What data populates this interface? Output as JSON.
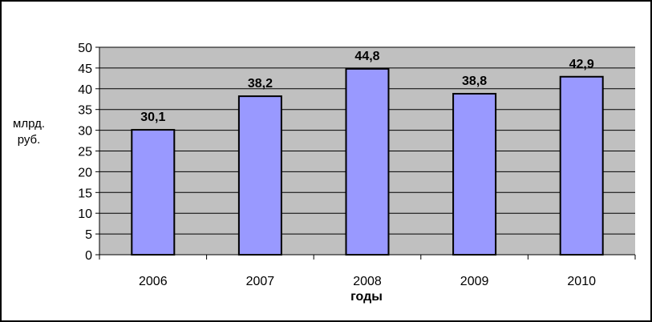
{
  "chart_data": {
    "type": "bar",
    "categories": [
      "2006",
      "2007",
      "2008",
      "2009",
      "2010"
    ],
    "values": [
      30.1,
      38.2,
      44.8,
      38.8,
      42.9
    ],
    "value_labels": [
      "30,1",
      "38,2",
      "44,8",
      "38,8",
      "42,9"
    ],
    "y_ticks": [
      "0",
      "5",
      "10",
      "15",
      "20",
      "25",
      "30",
      "35",
      "40",
      "45",
      "50"
    ],
    "ylim": [
      0,
      50
    ],
    "y_step": 5,
    "ylabel_lines": [
      "млрд.",
      "руб."
    ],
    "xlabel": "годы",
    "grid": true,
    "legend": "none",
    "colors": {
      "bar_fill": "#9999ff",
      "bar_stroke": "#000000",
      "plot_background": "#c0c0c0",
      "gridline": "#000000"
    }
  }
}
